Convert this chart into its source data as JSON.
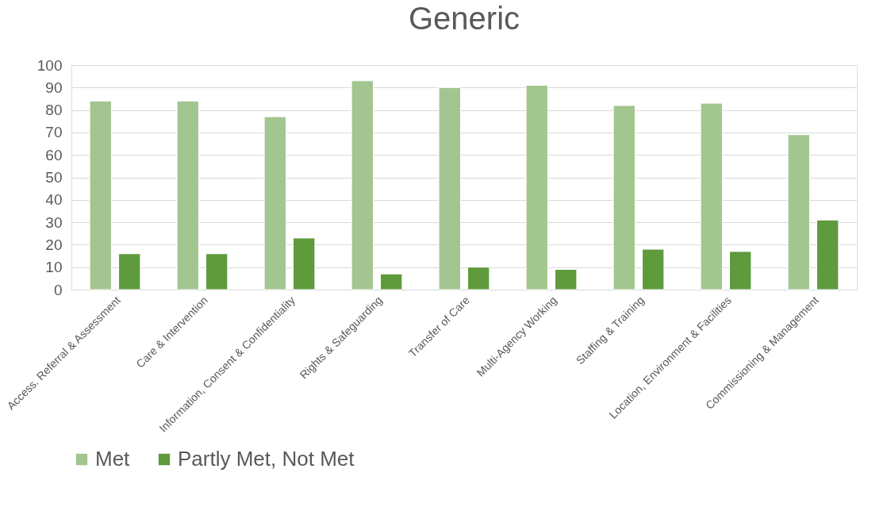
{
  "chart_data": {
    "type": "bar",
    "title": "Generic",
    "categories": [
      "Access. Referral & Assessment",
      "Care & Intervention",
      "Information, Consent & Confidentiality",
      "Rights & Safeguarding",
      "Transfer of Care",
      "Multi-Agency Working",
      "Staffing & Training",
      "Location, Environment & Facilities",
      "Commissioning & Management"
    ],
    "series": [
      {
        "name": "Met",
        "color": "#a3c58f",
        "values": [
          84,
          84,
          77,
          93,
          90,
          91,
          82,
          83,
          69
        ]
      },
      {
        "name": "Partly Met, Not Met",
        "color": "#5f9a3c",
        "values": [
          16,
          16,
          23,
          7,
          10,
          9,
          18,
          17,
          31
        ]
      }
    ],
    "ylim": [
      0,
      100
    ],
    "yticks": [
      0,
      10,
      20,
      30,
      40,
      50,
      60,
      70,
      80,
      90,
      100
    ],
    "grid": "y",
    "legend": "bottom"
  }
}
